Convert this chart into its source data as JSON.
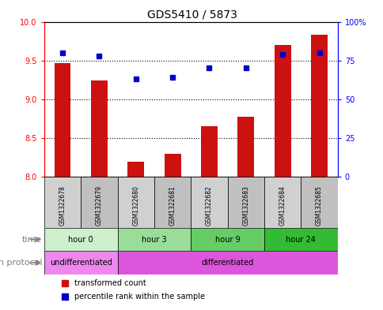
{
  "title": "GDS5410 / 5873",
  "samples": [
    "GSM1322678",
    "GSM1322679",
    "GSM1322680",
    "GSM1322681",
    "GSM1322682",
    "GSM1322683",
    "GSM1322684",
    "GSM1322685"
  ],
  "transformed_count": [
    9.47,
    9.24,
    8.19,
    8.3,
    8.65,
    8.77,
    9.7,
    9.83
  ],
  "percentile_rank": [
    80,
    78,
    63,
    64,
    70,
    70,
    79,
    80
  ],
  "ylim_left": [
    8.0,
    10.0
  ],
  "ylim_right": [
    0,
    100
  ],
  "yticks_left": [
    8.0,
    8.5,
    9.0,
    9.5,
    10.0
  ],
  "yticks_right": [
    0,
    25,
    50,
    75,
    100
  ],
  "ytick_right_labels": [
    "0",
    "25",
    "50",
    "75",
    "100%"
  ],
  "bar_color": "#cc1111",
  "dot_color": "#0000cc",
  "bar_bottom": 8.0,
  "grid_lines": [
    8.5,
    9.0,
    9.5
  ],
  "time_groups": [
    {
      "label": "hour 0",
      "start": 0,
      "end": 2,
      "color": "#ccf0cc"
    },
    {
      "label": "hour 3",
      "start": 2,
      "end": 4,
      "color": "#99dd99"
    },
    {
      "label": "hour 9",
      "start": 4,
      "end": 6,
      "color": "#66cc66"
    },
    {
      "label": "hour 24",
      "start": 6,
      "end": 8,
      "color": "#33bb33"
    }
  ],
  "growth_groups": [
    {
      "label": "undifferentiated",
      "start": 0,
      "end": 2,
      "color": "#ee88ee"
    },
    {
      "label": "differentiated",
      "start": 2,
      "end": 8,
      "color": "#dd55dd"
    }
  ],
  "sample_box_colors": [
    "#d0d0d0",
    "#c0c0c0"
  ],
  "legend_items": [
    {
      "label": "transformed count",
      "color": "#cc1111"
    },
    {
      "label": "percentile rank within the sample",
      "color": "#0000cc"
    }
  ],
  "title_fontsize": 10,
  "axis_fontsize": 7,
  "sample_fontsize": 5.5,
  "row_label_fontsize": 8,
  "legend_fontsize": 7
}
